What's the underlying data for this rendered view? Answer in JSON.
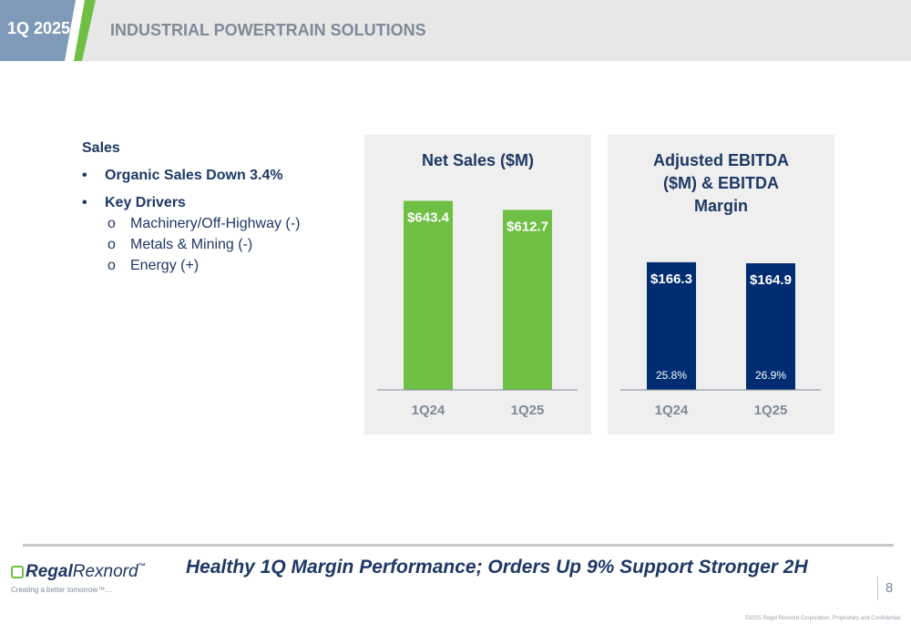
{
  "header": {
    "quarter": "1Q 2025",
    "title": "INDUSTRIAL POWERTRAIN SOLUTIONS"
  },
  "left": {
    "heading": "Sales",
    "bullet1": "Organic Sales Down 3.4%",
    "bullet2": "Key Drivers",
    "drivers": [
      "Machinery/Off-Highway (-)",
      "Metals & Mining (-)",
      "Energy (+)"
    ]
  },
  "chart_data": [
    {
      "type": "bar",
      "title": "Net Sales ($M)",
      "categories": [
        "1Q24",
        "1Q25"
      ],
      "values": [
        643.4,
        612.7
      ],
      "value_labels": [
        "$643.4",
        "$612.7"
      ],
      "bar_color": "#6fbf44",
      "ylim": [
        0,
        800
      ]
    },
    {
      "type": "bar",
      "title_lines": [
        "Adjusted EBITDA",
        "($M) & EBITDA",
        "Margin"
      ],
      "categories": [
        "1Q24",
        "1Q25"
      ],
      "values": [
        166.3,
        164.9
      ],
      "value_labels": [
        "$166.3",
        "$164.9"
      ],
      "margins": [
        "25.8%",
        "26.9%"
      ],
      "bar_color": "#002d72",
      "ylim": [
        0,
        267
      ]
    }
  ],
  "footer": {
    "tagline": "Healthy 1Q Margin Performance; Orders Up 9% Support Stronger 2H",
    "logo_regal": "Regal",
    "logo_rexnord": "Rexnord",
    "logo_tm": "™",
    "logo_tagline": "Creating a better tomorrow™…",
    "page": "8",
    "copyright": "©2025 Regal Rexnord Corporation, Proprietary and Confidential"
  },
  "colors": {
    "navy": "#1f3864",
    "green": "#6fbf44",
    "slate": "#7f99b9"
  }
}
